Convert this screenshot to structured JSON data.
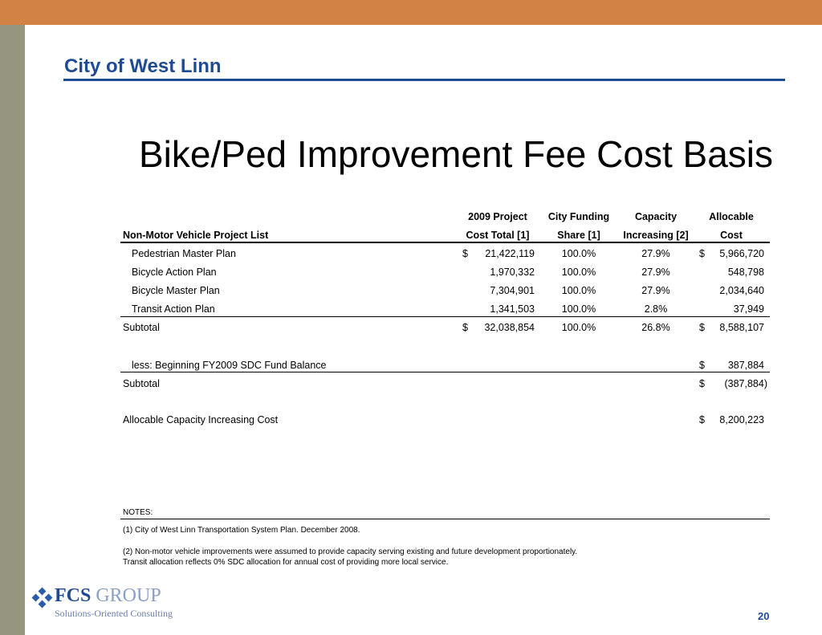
{
  "header": {
    "org": "City of West Linn"
  },
  "slide": {
    "title": "Bike/Ped Improvement Fee Cost Basis",
    "page_number": "20"
  },
  "table": {
    "headers": {
      "name": "Non-Motor Vehicle Project List",
      "cost_l1": "2009 Project",
      "cost_l2": "Cost Total  [1]",
      "share_l1": "City Funding",
      "share_l2": "Share [1]",
      "cap_l1": "Capacity",
      "cap_l2": "Increasing [2]",
      "alloc_l1": "Allocable",
      "alloc_l2": "Cost"
    },
    "rows": [
      {
        "name": "Pedestrian Master Plan",
        "cost_sym": "$",
        "cost": "21,422,119",
        "share": "100.0%",
        "cap": "27.9%",
        "alloc_sym": "$",
        "alloc": "5,966,720"
      },
      {
        "name": "Bicycle Action Plan",
        "cost_sym": "",
        "cost": "1,970,332",
        "share": "100.0%",
        "cap": "27.9%",
        "alloc_sym": "",
        "alloc": "548,798"
      },
      {
        "name": "Bicycle Master Plan",
        "cost_sym": "",
        "cost": "7,304,901",
        "share": "100.0%",
        "cap": "27.9%",
        "alloc_sym": "",
        "alloc": "2,034,640"
      },
      {
        "name": "Transit Action Plan",
        "cost_sym": "",
        "cost": "1,341,503",
        "share": "100.0%",
        "cap": "2.8%",
        "alloc_sym": "",
        "alloc": "37,949"
      }
    ],
    "subtotal1": {
      "name": "Subtotal",
      "cost_sym": "$",
      "cost": "32,038,854",
      "share": "100.0%",
      "cap": "26.8%",
      "alloc_sym": "$",
      "alloc": "8,588,107"
    },
    "less": {
      "name": "less:  Beginning FY2009 SDC Fund Balance",
      "alloc_sym": "$",
      "alloc": "387,884"
    },
    "subtotal2": {
      "name": "Subtotal",
      "alloc_sym": "$",
      "alloc": "(387,884)"
    },
    "total": {
      "name": "Allocable Capacity Increasing Cost",
      "alloc_sym": "$",
      "alloc": "8,200,223"
    }
  },
  "notes": {
    "heading": "NOTES:",
    "note1": "(1) City of West Linn Transportation System Plan. December 2008.",
    "note2a": "(2) Non-motor vehicle improvements were assumed to provide capacity serving existing and future development proportionately.",
    "note2b": "Transit allocation reflects 0% SDC allocation for annual cost of providing more local service."
  },
  "logo": {
    "fcs": "FCS",
    "group": "GROUP",
    "tagline": "Solutions-Oriented Consulting"
  },
  "colors": {
    "accent_top": "#d18244",
    "side_bar": "#969680",
    "brand_blue": "#1f4a94"
  }
}
